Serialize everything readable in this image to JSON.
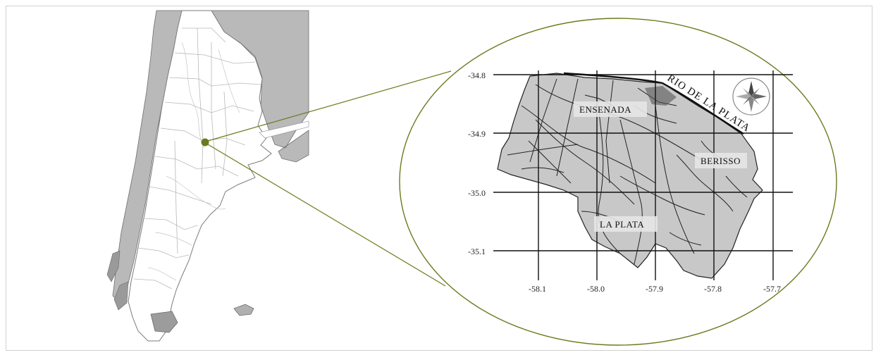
{
  "map": {
    "place_labels": {
      "ensenada": "ENSENADA",
      "berisso": "BERISSO",
      "la_plata": "LA PLATA",
      "river": "RIO DE LA PLATA"
    },
    "lat_ticks": [
      "-34.8",
      "-34.9",
      "-35.0",
      "-35.1"
    ],
    "lon_ticks": [
      "-58.1",
      "-58.0",
      "-57.9",
      "-57.8",
      "-57.7"
    ],
    "icons": {
      "compass": "compass-rose-icon",
      "location_marker": "location-dot-icon"
    },
    "colors": {
      "callout": "#6b7a1e",
      "land": "#c8c8c8",
      "sea": "#ffffff",
      "grid": "#111111"
    }
  }
}
